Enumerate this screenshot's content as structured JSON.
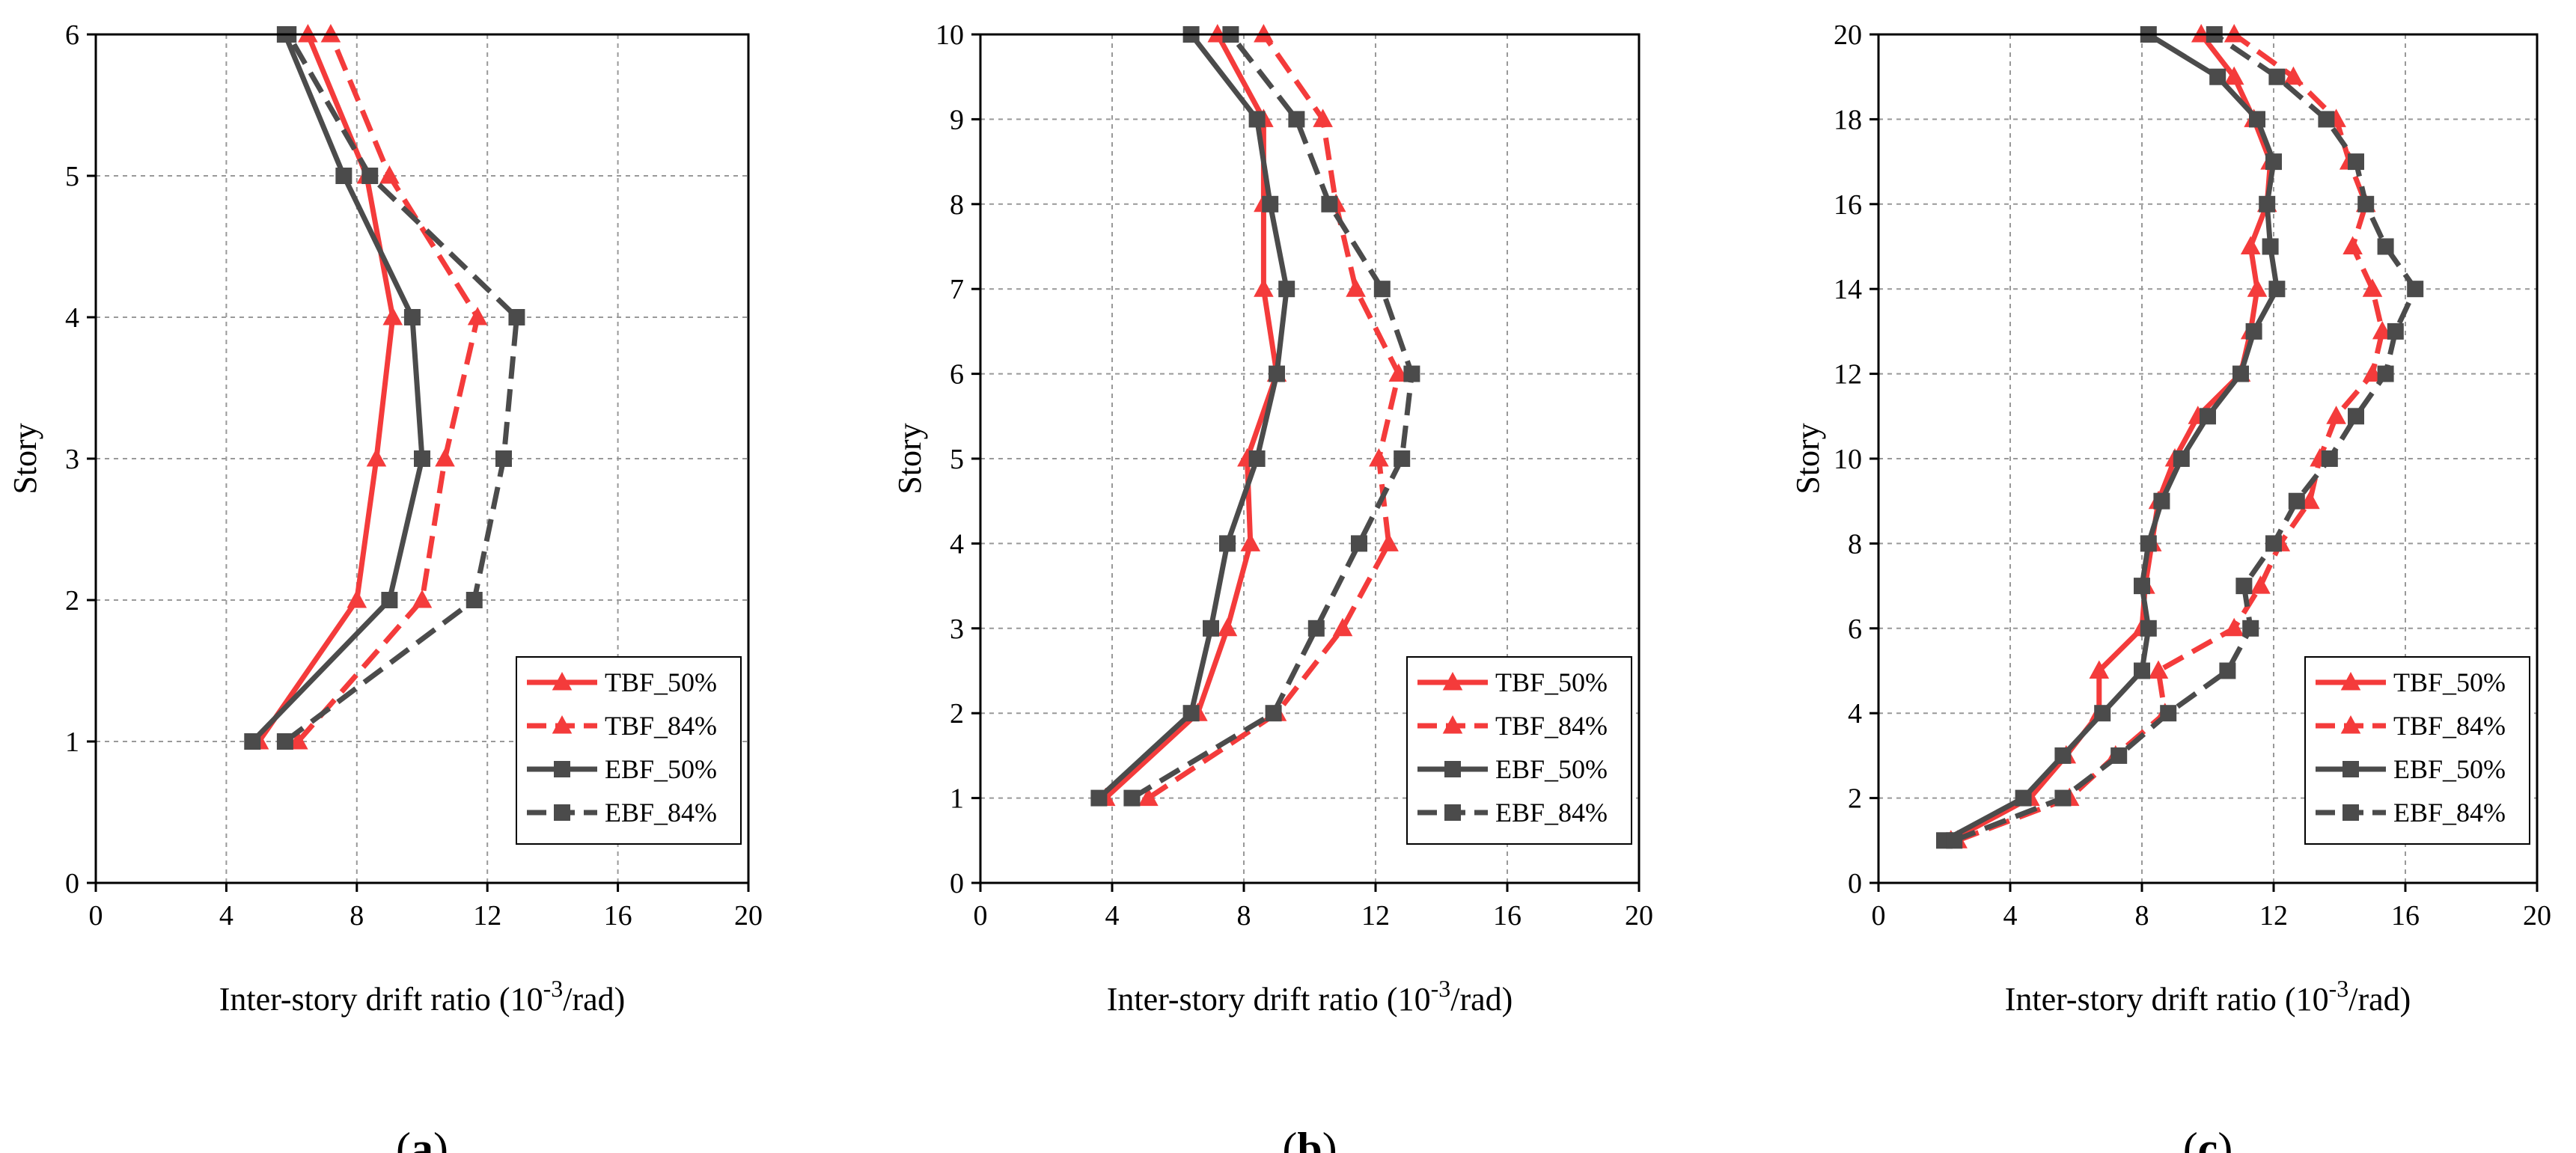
{
  "colors": {
    "tbf": "#f43b3b",
    "ebf": "#4b4b4b",
    "grid": "#999999"
  },
  "chart_data": [
    {
      "type": "line",
      "panel_label": [
        "(",
        "a",
        ")"
      ],
      "xlabel": "Inter-story drift ratio",
      "xunit_parts": [
        "(10",
        "-3",
        "/rad)"
      ],
      "ylabel": "Story",
      "xlim": [
        0,
        20
      ],
      "ylim": [
        0,
        6
      ],
      "xticks": [
        0,
        4,
        8,
        12,
        16,
        20
      ],
      "yticks": [
        0,
        1,
        2,
        3,
        4,
        5,
        6
      ],
      "grid": true,
      "legend_position": "bottom-right",
      "series": [
        {
          "name": "TBF_50%",
          "color": "tbf",
          "marker": "triangle",
          "dash": false,
          "x": [
            5.0,
            8.0,
            8.6,
            9.1,
            8.3,
            6.5
          ],
          "y": [
            1,
            2,
            3,
            4,
            5,
            6
          ]
        },
        {
          "name": "TBF_84%",
          "color": "tbf",
          "marker": "triangle",
          "dash": true,
          "x": [
            6.2,
            10.0,
            10.7,
            11.7,
            9.0,
            7.2
          ],
          "y": [
            1,
            2,
            3,
            4,
            5,
            6
          ]
        },
        {
          "name": "EBF_50%",
          "color": "ebf",
          "marker": "square",
          "dash": false,
          "x": [
            4.8,
            9.0,
            10.0,
            9.7,
            7.6,
            5.8
          ],
          "y": [
            1,
            2,
            3,
            4,
            5,
            6
          ]
        },
        {
          "name": "EBF_84%",
          "color": "ebf",
          "marker": "square",
          "dash": true,
          "x": [
            5.8,
            11.6,
            12.5,
            12.9,
            8.4,
            5.9
          ],
          "y": [
            1,
            2,
            3,
            4,
            5,
            6
          ]
        }
      ]
    },
    {
      "type": "line",
      "panel_label": [
        "(",
        "b",
        ")"
      ],
      "xlabel": "Inter-story drift ratio",
      "xunit_parts": [
        "(10",
        "-3",
        "/rad)"
      ],
      "ylabel": "Story",
      "xlim": [
        0,
        20
      ],
      "ylim": [
        0,
        10
      ],
      "xticks": [
        0,
        4,
        8,
        12,
        16,
        20
      ],
      "yticks": [
        0,
        1,
        2,
        3,
        4,
        5,
        6,
        7,
        8,
        9,
        10
      ],
      "grid": true,
      "legend_position": "bottom-right",
      "series": [
        {
          "name": "TBF_50%",
          "color": "tbf",
          "marker": "triangle",
          "dash": false,
          "x": [
            3.8,
            6.6,
            7.5,
            8.2,
            8.1,
            9.0,
            8.6,
            8.6,
            8.6,
            7.2
          ],
          "y": [
            1,
            2,
            3,
            4,
            5,
            6,
            7,
            8,
            9,
            10
          ]
        },
        {
          "name": "TBF_84%",
          "color": "tbf",
          "marker": "triangle",
          "dash": true,
          "x": [
            5.1,
            9.0,
            11.0,
            12.4,
            12.1,
            12.7,
            11.4,
            10.8,
            10.4,
            8.6
          ],
          "y": [
            1,
            2,
            3,
            4,
            5,
            6,
            7,
            8,
            9,
            10
          ]
        },
        {
          "name": "EBF_50%",
          "color": "ebf",
          "marker": "square",
          "dash": false,
          "x": [
            3.6,
            6.4,
            7.0,
            7.5,
            8.4,
            9.0,
            9.3,
            8.8,
            8.4,
            6.4
          ],
          "y": [
            1,
            2,
            3,
            4,
            5,
            6,
            7,
            8,
            9,
            10
          ]
        },
        {
          "name": "EBF_84%",
          "color": "ebf",
          "marker": "square",
          "dash": true,
          "x": [
            4.6,
            8.9,
            10.2,
            11.5,
            12.8,
            13.1,
            12.2,
            10.6,
            9.6,
            7.6
          ],
          "y": [
            1,
            2,
            3,
            4,
            5,
            6,
            7,
            8,
            9,
            10
          ]
        }
      ]
    },
    {
      "type": "line",
      "panel_label": [
        "(",
        "c",
        ")"
      ],
      "xlabel": "Inter-story drift ratio",
      "xunit_parts": [
        "(10",
        "-3",
        "/rad)"
      ],
      "ylabel": "Story",
      "xlim": [
        0,
        20
      ],
      "ylim": [
        0,
        20
      ],
      "xticks": [
        0,
        4,
        8,
        12,
        16,
        20
      ],
      "yticks": [
        0,
        2,
        4,
        6,
        8,
        10,
        12,
        14,
        16,
        18,
        20
      ],
      "grid": true,
      "legend_position": "bottom-right",
      "series": [
        {
          "name": "TBF_50%",
          "color": "tbf",
          "marker": "triangle",
          "dash": false,
          "x": [
            2.2,
            4.6,
            5.7,
            6.7,
            6.7,
            8.0,
            8.1,
            8.3,
            8.5,
            9.0,
            9.7,
            11.0,
            11.3,
            11.5,
            11.3,
            11.8,
            11.9,
            11.4,
            10.8,
            9.8
          ],
          "y": [
            1,
            2,
            3,
            4,
            5,
            6,
            7,
            8,
            9,
            10,
            11,
            12,
            13,
            14,
            15,
            16,
            17,
            18,
            19,
            20
          ]
        },
        {
          "name": "TBF_84%",
          "color": "tbf",
          "marker": "triangle",
          "dash": true,
          "x": [
            2.4,
            5.8,
            7.2,
            8.7,
            8.5,
            10.8,
            11.6,
            12.2,
            13.1,
            13.4,
            13.9,
            15.0,
            15.3,
            15.0,
            14.4,
            14.8,
            14.3,
            13.9,
            12.6,
            10.8
          ],
          "y": [
            1,
            2,
            3,
            4,
            5,
            6,
            7,
            8,
            9,
            10,
            11,
            12,
            13,
            14,
            15,
            16,
            17,
            18,
            19,
            20
          ]
        },
        {
          "name": "EBF_50%",
          "color": "ebf",
          "marker": "square",
          "dash": false,
          "x": [
            2.0,
            4.4,
            5.6,
            6.8,
            8.0,
            8.2,
            8.0,
            8.2,
            8.6,
            9.2,
            10.0,
            11.0,
            11.4,
            12.1,
            11.9,
            11.8,
            12.0,
            11.5,
            10.3,
            8.2
          ],
          "y": [
            1,
            2,
            3,
            4,
            5,
            6,
            7,
            8,
            9,
            10,
            11,
            12,
            13,
            14,
            15,
            16,
            17,
            18,
            19,
            20
          ]
        },
        {
          "name": "EBF_84%",
          "color": "ebf",
          "marker": "square",
          "dash": true,
          "x": [
            2.3,
            5.6,
            7.3,
            8.8,
            10.6,
            11.3,
            11.1,
            12.0,
            12.7,
            13.7,
            14.5,
            15.4,
            15.7,
            16.3,
            15.4,
            14.8,
            14.5,
            13.6,
            12.1,
            10.2
          ],
          "y": [
            1,
            2,
            3,
            4,
            5,
            6,
            7,
            8,
            9,
            10,
            11,
            12,
            13,
            14,
            15,
            16,
            17,
            18,
            19,
            20
          ]
        }
      ]
    }
  ]
}
